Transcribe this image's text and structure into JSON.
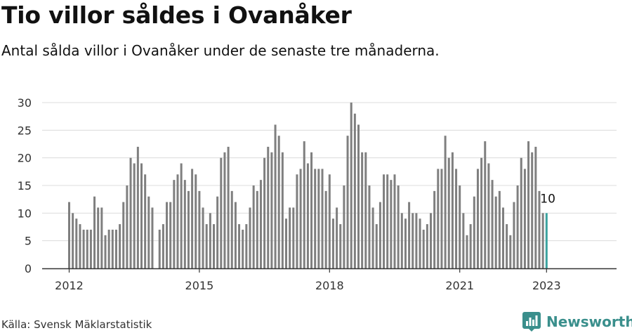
{
  "title": "Tio villor såldes i Ovanåker",
  "subtitle": "Antal sålda villor i Ovanåker under de senaste tre månaderna.",
  "source": "Källa: Svensk Mäklarstatistik",
  "brand": {
    "name": "Newsworthy",
    "icon": "bar-chart-speech-bubble-icon"
  },
  "colors": {
    "bar": "#7f7f7f",
    "highlight": "#3aa39f",
    "grid": "#dcdcdc",
    "axis": "#333333",
    "brand": "#3a8f8c"
  },
  "chart_data": {
    "type": "bar",
    "title": "Tio villor såldes i Ovanåker",
    "subtitle": "Antal sålda villor i Ovanåker under de senaste tre månaderna.",
    "xlabel": "",
    "ylabel": "",
    "ylim": [
      0,
      30
    ],
    "y_ticks": [
      0,
      5,
      10,
      15,
      20,
      25,
      30
    ],
    "x_ticks": [
      {
        "label": "2012",
        "index": 0
      },
      {
        "label": "2015",
        "index": 36
      },
      {
        "label": "2018",
        "index": 72
      },
      {
        "label": "2021",
        "index": 108
      },
      {
        "label": "2023",
        "index": 132
      }
    ],
    "grid": true,
    "legend": "none",
    "highlight_index": 132,
    "highlight_label": "10",
    "values": [
      12,
      10,
      9,
      8,
      7,
      7,
      7,
      13,
      11,
      11,
      6,
      7,
      7,
      7,
      8,
      12,
      15,
      20,
      19,
      22,
      19,
      17,
      13,
      11,
      null,
      7,
      8,
      12,
      12,
      16,
      17,
      19,
      16,
      14,
      18,
      17,
      14,
      11,
      8,
      10,
      8,
      13,
      20,
      21,
      22,
      14,
      12,
      8,
      7,
      8,
      11,
      15,
      14,
      16,
      20,
      22,
      21,
      26,
      24,
      21,
      9,
      11,
      11,
      17,
      18,
      23,
      19,
      21,
      18,
      18,
      18,
      14,
      17,
      9,
      11,
      8,
      15,
      24,
      30,
      28,
      26,
      21,
      21,
      15,
      11,
      8,
      12,
      17,
      17,
      16,
      17,
      15,
      10,
      9,
      12,
      10,
      10,
      9,
      7,
      8,
      10,
      14,
      18,
      18,
      24,
      20,
      21,
      18,
      15,
      10,
      6,
      8,
      13,
      18,
      20,
      23,
      19,
      16,
      13,
      14,
      11,
      8,
      6,
      12,
      15,
      20,
      18,
      23,
      21,
      22,
      14,
      10,
      10
    ]
  }
}
